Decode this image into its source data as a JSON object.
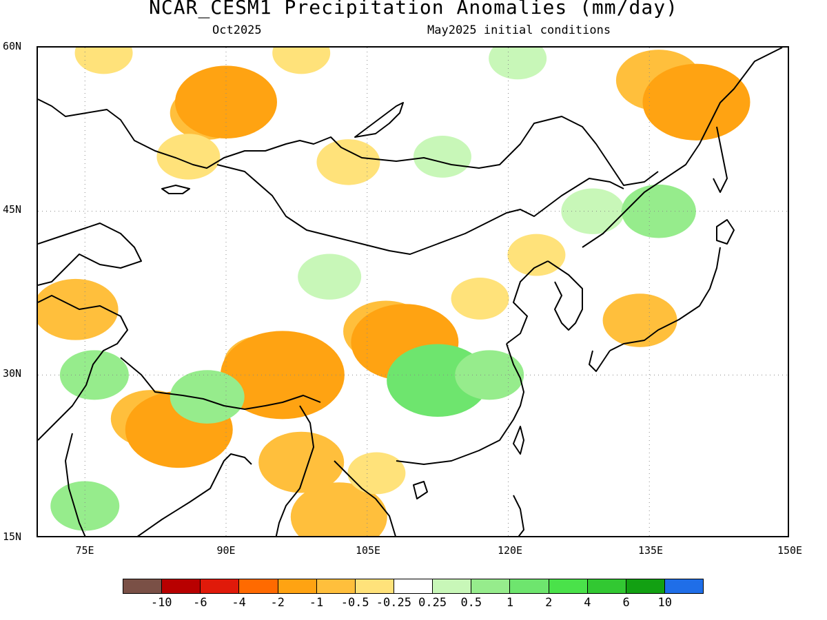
{
  "title": "NCAR_CESM1 Precipitation Anomalies (mm/day)",
  "subtitle_left": "Oct2025",
  "subtitle_right": "May2025 initial conditions",
  "lat_labels": [
    "60N",
    "45N",
    "30N",
    "15N"
  ],
  "lon_labels": [
    "75E",
    "90E",
    "105E",
    "120E",
    "135E",
    "150E"
  ],
  "colorbar": {
    "colors": [
      "#7a5046",
      "#b80000",
      "#e01a0a",
      "#ff6a00",
      "#ffa312",
      "#ffbf3c",
      "#ffe27a",
      "#ffffff",
      "#c8f7b8",
      "#96ec8c",
      "#6ee56e",
      "#4ae24a",
      "#32c832",
      "#12a012",
      "#1f6ee8"
    ],
    "labels": [
      "-10",
      "-6",
      "-4",
      "-2",
      "-1",
      "-0.5",
      "-0.25",
      "0.25",
      "0.5",
      "1",
      "2",
      "4",
      "6",
      "10"
    ]
  },
  "chart_data": {
    "type": "heatmap",
    "title": "NCAR_CESM1 Precipitation Anomalies (mm/day)",
    "lon_range": [
      70,
      150
    ],
    "lat_range": [
      15,
      60
    ],
    "grid": "dotted",
    "levels": [
      -10,
      -6,
      -4,
      -2,
      -1,
      -0.5,
      -0.25,
      0.25,
      0.5,
      1,
      2,
      4,
      6,
      10
    ],
    "anomaly_regions": [
      {
        "lon": 88,
        "lat": 54,
        "value": -0.6
      },
      {
        "lon": 90,
        "lat": 55,
        "value": -1.1
      },
      {
        "lon": 86,
        "lat": 50,
        "value": -0.4
      },
      {
        "lon": 103,
        "lat": 49.5,
        "value": -0.4
      },
      {
        "lon": 77,
        "lat": 59.5,
        "value": -0.3
      },
      {
        "lon": 98,
        "lat": 59.5,
        "value": -0.3
      },
      {
        "lon": 136,
        "lat": 57,
        "value": -0.8
      },
      {
        "lon": 140,
        "lat": 55,
        "value": -1.2
      },
      {
        "lon": 121,
        "lat": 59,
        "value": 0.3
      },
      {
        "lon": 113,
        "lat": 50,
        "value": 0.3
      },
      {
        "lon": 107,
        "lat": 34,
        "value": -0.8
      },
      {
        "lon": 109,
        "lat": 33,
        "value": -1.2
      },
      {
        "lon": 94,
        "lat": 31,
        "value": -0.7
      },
      {
        "lon": 96,
        "lat": 30,
        "value": -1.5
      },
      {
        "lon": 74,
        "lat": 36,
        "value": -0.8
      },
      {
        "lon": 82,
        "lat": 26,
        "value": -0.7
      },
      {
        "lon": 85,
        "lat": 25,
        "value": -1.2
      },
      {
        "lon": 98,
        "lat": 22,
        "value": -0.8
      },
      {
        "lon": 102,
        "lat": 17,
        "value": -1.0
      },
      {
        "lon": 106,
        "lat": 21,
        "value": -0.3
      },
      {
        "lon": 117,
        "lat": 37,
        "value": -0.3
      },
      {
        "lon": 123,
        "lat": 41,
        "value": -0.3
      },
      {
        "lon": 134,
        "lat": 35,
        "value": -0.6
      },
      {
        "lon": 112,
        "lat": 30,
        "value": 0.7
      },
      {
        "lon": 112.5,
        "lat": 29.5,
        "value": 1.1
      },
      {
        "lon": 118,
        "lat": 30,
        "value": 0.5
      },
      {
        "lon": 88,
        "lat": 28,
        "value": 0.6
      },
      {
        "lon": 76,
        "lat": 30,
        "value": 0.5
      },
      {
        "lon": 75,
        "lat": 18,
        "value": 0.5
      },
      {
        "lon": 101,
        "lat": 39,
        "value": 0.4
      },
      {
        "lon": 129,
        "lat": 45,
        "value": 0.4
      },
      {
        "lon": 136,
        "lat": 45,
        "value": 0.6
      }
    ]
  }
}
